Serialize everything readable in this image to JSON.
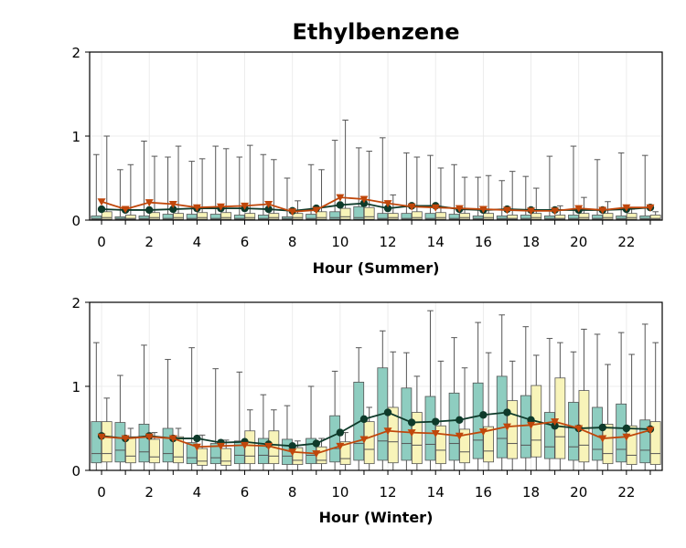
{
  "chart_data": {
    "title": "Ethylbenzene",
    "type": "box",
    "colors": {
      "box_a": "#8ecdc0",
      "box_b": "#f8f4b9",
      "line_a": "#0e3a2a",
      "line_b": "#c0470b",
      "whisker": "#555555"
    },
    "panels": [
      {
        "xlabel": "Hour (Summer)",
        "ylim": [
          0,
          2
        ],
        "yticks": [
          0,
          1,
          2
        ],
        "xticks": [
          0,
          2,
          4,
          6,
          8,
          10,
          12,
          14,
          16,
          18,
          20,
          22
        ],
        "x": [
          0,
          1,
          2,
          3,
          4,
          5,
          6,
          7,
          8,
          9,
          10,
          11,
          12,
          13,
          14,
          15,
          16,
          17,
          18,
          19,
          20,
          21,
          22,
          23
        ],
        "series": [
          {
            "box": {
              "q1": [
                0.01,
                0.01,
                0.01,
                0.01,
                0.01,
                0.01,
                0.01,
                0.01,
                0.01,
                0.01,
                0.01,
                0.01,
                0.01,
                0.01,
                0.01,
                0.01,
                0.01,
                0.01,
                0.01,
                0.01,
                0.01,
                0.01,
                0.01,
                0.01
              ],
              "q3": [
                0.05,
                0.04,
                0.05,
                0.07,
                0.07,
                0.07,
                0.06,
                0.06,
                0.04,
                0.07,
                0.1,
                0.16,
                0.08,
                0.08,
                0.08,
                0.07,
                0.05,
                0.05,
                0.06,
                0.05,
                0.06,
                0.06,
                0.05,
                0.05
              ],
              "med": [
                0.02,
                0.02,
                0.02,
                0.02,
                0.02,
                0.02,
                0.02,
                0.02,
                0.02,
                0.02,
                0.03,
                0.03,
                0.02,
                0.02,
                0.02,
                0.02,
                0.02,
                0.02,
                0.02,
                0.02,
                0.02,
                0.02,
                0.02,
                0.02
              ],
              "whislo": [
                0,
                0,
                0,
                0,
                0,
                0,
                0,
                0,
                0,
                0,
                0,
                0,
                0,
                0,
                0,
                0,
                0,
                0,
                0,
                0,
                0,
                0,
                0,
                0
              ],
              "whishi": [
                0.78,
                0.6,
                0.94,
                0.75,
                0.7,
                0.88,
                0.75,
                0.78,
                0.5,
                0.66,
                0.95,
                0.86,
                0.98,
                0.8,
                0.77,
                0.66,
                0.51,
                0.47,
                0.52,
                0.76,
                0.88,
                0.72,
                0.8,
                0.77
              ]
            },
            "mean": [
              0.13,
              0.12,
              0.12,
              0.13,
              0.14,
              0.14,
              0.14,
              0.13,
              0.11,
              0.14,
              0.18,
              0.2,
              0.14,
              0.17,
              0.17,
              0.13,
              0.12,
              0.13,
              0.12,
              0.12,
              0.12,
              0.12,
              0.13,
              0.15
            ]
          },
          {
            "box": {
              "q1": [
                0.01,
                0.01,
                0.01,
                0.01,
                0.01,
                0.01,
                0.01,
                0.01,
                0.01,
                0.01,
                0.01,
                0.01,
                0.01,
                0.01,
                0.01,
                0.01,
                0.01,
                0.01,
                0.01,
                0.01,
                0.01,
                0.01,
                0.01,
                0.01
              ],
              "q3": [
                0.1,
                0.06,
                0.09,
                0.08,
                0.09,
                0.09,
                0.08,
                0.08,
                0.08,
                0.1,
                0.14,
                0.15,
                0.08,
                0.1,
                0.09,
                0.08,
                0.08,
                0.06,
                0.08,
                0.06,
                0.08,
                0.08,
                0.08,
                0.06
              ],
              "med": [
                0.03,
                0.02,
                0.03,
                0.03,
                0.03,
                0.03,
                0.03,
                0.03,
                0.03,
                0.03,
                0.04,
                0.04,
                0.03,
                0.03,
                0.03,
                0.03,
                0.03,
                0.02,
                0.03,
                0.02,
                0.03,
                0.03,
                0.03,
                0.02
              ],
              "whislo": [
                0,
                0,
                0,
                0,
                0,
                0,
                0,
                0,
                0,
                0,
                0,
                0,
                0,
                0,
                0,
                0,
                0,
                0,
                0,
                0,
                0,
                0,
                0,
                0
              ],
              "whishi": [
                1.0,
                0.66,
                0.76,
                0.88,
                0.73,
                0.85,
                0.89,
                0.72,
                0.23,
                0.6,
                1.19,
                0.82,
                0.3,
                0.75,
                0.62,
                0.51,
                0.53,
                0.58,
                0.38,
                0.17,
                0.27,
                0.22,
                0.13,
                0.1
              ]
            },
            "mean": [
              0.22,
              0.13,
              0.21,
              0.19,
              0.15,
              0.16,
              0.17,
              0.19,
              0.1,
              0.12,
              0.27,
              0.25,
              0.2,
              0.16,
              0.15,
              0.14,
              0.13,
              0.12,
              0.11,
              0.11,
              0.14,
              0.12,
              0.15,
              0.15
            ]
          }
        ]
      },
      {
        "xlabel": "Hour (Winter)",
        "ylim": [
          0,
          2
        ],
        "yticks": [
          0,
          1,
          2
        ],
        "xticks": [
          0,
          2,
          4,
          6,
          8,
          10,
          12,
          14,
          16,
          18,
          20,
          22
        ],
        "x": [
          0,
          1,
          2,
          3,
          4,
          5,
          6,
          7,
          8,
          9,
          10,
          11,
          12,
          13,
          14,
          15,
          16,
          17,
          18,
          19,
          20,
          21,
          22,
          23
        ],
        "series": [
          {
            "box": {
              "q1": [
                0.09,
                0.1,
                0.1,
                0.1,
                0.08,
                0.08,
                0.08,
                0.08,
                0.07,
                0.08,
                0.1,
                0.12,
                0.12,
                0.12,
                0.12,
                0.12,
                0.14,
                0.15,
                0.15,
                0.14,
                0.12,
                0.12,
                0.1,
                0.09
              ],
              "q3": [
                0.58,
                0.57,
                0.55,
                0.5,
                0.33,
                0.32,
                0.35,
                0.38,
                0.37,
                0.38,
                0.65,
                1.05,
                1.22,
                0.98,
                0.88,
                0.92,
                1.04,
                1.12,
                0.89,
                0.69,
                0.81,
                0.75,
                0.79,
                0.6
              ],
              "med": [
                0.2,
                0.24,
                0.22,
                0.2,
                0.15,
                0.15,
                0.18,
                0.18,
                0.17,
                0.18,
                0.26,
                0.32,
                0.35,
                0.32,
                0.31,
                0.32,
                0.36,
                0.38,
                0.3,
                0.28,
                0.28,
                0.25,
                0.25,
                0.24
              ],
              "whislo": [
                0,
                0,
                0,
                0,
                0,
                0,
                0,
                0,
                0,
                0,
                0,
                0,
                0,
                0,
                0,
                0,
                0,
                0,
                0,
                0,
                0,
                0,
                0,
                0
              ],
              "whishi": [
                1.52,
                1.13,
                1.49,
                1.32,
                1.46,
                1.21,
                1.17,
                0.9,
                0.77,
                1.0,
                1.18,
                1.46,
                1.66,
                1.4,
                1.9,
                1.58,
                1.76,
                1.85,
                1.71,
                1.57,
                1.41,
                1.62,
                1.64,
                1.74
              ]
            },
            "mean": [
              0.41,
              0.38,
              0.41,
              0.38,
              0.38,
              0.33,
              0.34,
              0.31,
              0.29,
              0.32,
              0.45,
              0.61,
              0.69,
              0.57,
              0.58,
              0.6,
              0.66,
              0.69,
              0.6,
              0.53,
              0.5,
              0.51,
              0.5,
              0.49
            ]
          },
          {
            "box": {
              "q1": [
                0.1,
                0.09,
                0.09,
                0.09,
                0.06,
                0.06,
                0.08,
                0.08,
                0.07,
                0.08,
                0.07,
                0.08,
                0.09,
                0.08,
                0.08,
                0.09,
                0.1,
                0.14,
                0.16,
                0.14,
                0.1,
                0.08,
                0.07,
                0.07
              ],
              "q3": [
                0.58,
                0.4,
                0.37,
                0.4,
                0.26,
                0.26,
                0.47,
                0.47,
                0.27,
                0.28,
                0.34,
                0.58,
                0.75,
                0.69,
                0.53,
                0.49,
                0.52,
                0.83,
                1.01,
                1.1,
                0.95,
                0.55,
                0.53,
                0.58
              ],
              "med": [
                0.2,
                0.17,
                0.16,
                0.16,
                0.11,
                0.11,
                0.17,
                0.17,
                0.12,
                0.12,
                0.14,
                0.25,
                0.34,
                0.3,
                0.24,
                0.22,
                0.23,
                0.32,
                0.36,
                0.4,
                0.3,
                0.2,
                0.18,
                0.2
              ],
              "whislo": [
                0,
                0,
                0,
                0,
                0,
                0,
                0,
                0,
                0,
                0,
                0,
                0,
                0,
                0,
                0,
                0,
                0,
                0,
                0,
                0,
                0,
                0,
                0,
                0
              ],
              "whishi": [
                0.86,
                0.5,
                0.45,
                0.5,
                0.42,
                0.36,
                0.72,
                0.72,
                0.35,
                0.38,
                0.45,
                0.75,
                1.41,
                1.12,
                1.3,
                1.22,
                1.4,
                1.3,
                1.37,
                1.52,
                1.68,
                1.26,
                1.38,
                1.52
              ]
            },
            "mean": [
              0.4,
              0.38,
              0.4,
              0.38,
              0.28,
              0.29,
              0.3,
              0.29,
              0.22,
              0.2,
              0.29,
              0.37,
              0.47,
              0.45,
              0.44,
              0.41,
              0.46,
              0.52,
              0.54,
              0.58,
              0.5,
              0.38,
              0.4,
              0.48
            ]
          }
        ]
      }
    ]
  }
}
